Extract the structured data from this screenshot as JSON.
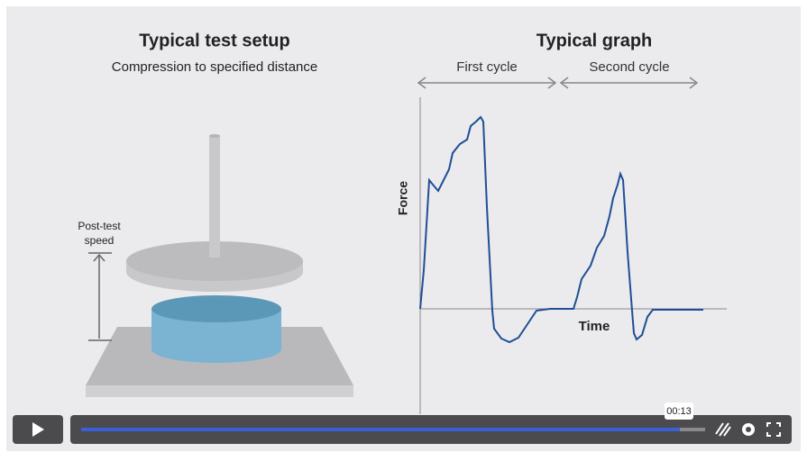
{
  "setup": {
    "title": "Typical test setup",
    "subtitle": "Compression to specified distance",
    "speed_label": [
      "Post-test",
      "speed"
    ]
  },
  "graph": {
    "title": "Typical graph",
    "first_cycle": "First cycle",
    "second_cycle": "Second cycle",
    "y_axis": "Force",
    "x_axis": "Time"
  },
  "player": {
    "time": "00:13"
  }
}
